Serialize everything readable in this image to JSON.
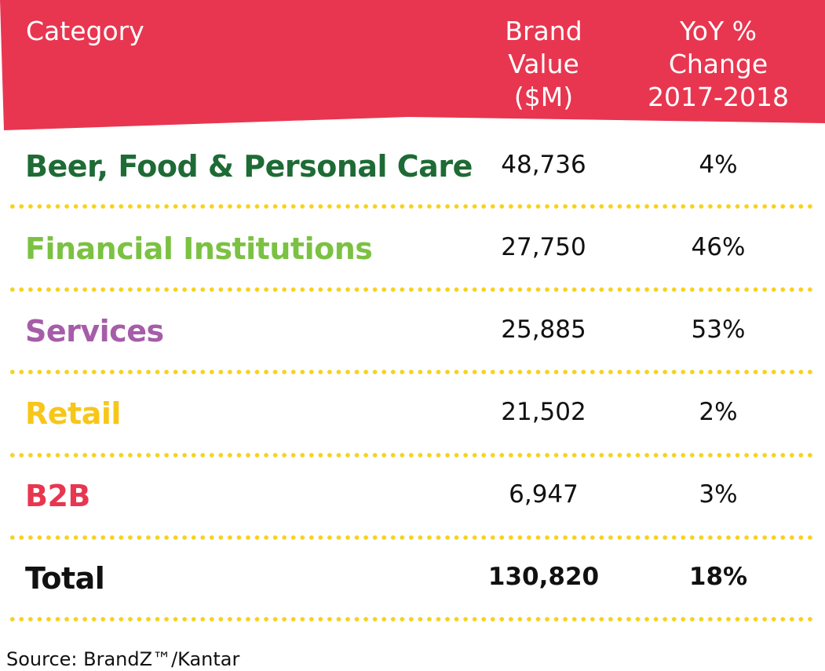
{
  "chart_data": {
    "type": "table",
    "header_color": "#e83650",
    "columns": [
      "Category",
      "Brand\nValue\n($M)",
      "YoY %\nChange\n2017-2018"
    ],
    "rows": [
      {
        "category": "Beer, Food & Personal Care",
        "brand_value": "48,736",
        "yoy_change": "4%",
        "color": "#1e6b35"
      },
      {
        "category": "Financial Institutions",
        "brand_value": "27,750",
        "yoy_change": "46%",
        "color": "#7bc142"
      },
      {
        "category": "Services",
        "brand_value": "25,885",
        "yoy_change": "53%",
        "color": "#a65da8"
      },
      {
        "category": "Retail",
        "brand_value": "21,502",
        "yoy_change": "2%",
        "color": "#f7c61a"
      },
      {
        "category": "B2B",
        "brand_value": "6,947",
        "yoy_change": "3%",
        "color": "#e83650"
      },
      {
        "category": "Total",
        "brand_value": "130,820",
        "yoy_change": "18%",
        "color": "#111111"
      }
    ],
    "source": "Source: BrandZ™/Kantar"
  }
}
